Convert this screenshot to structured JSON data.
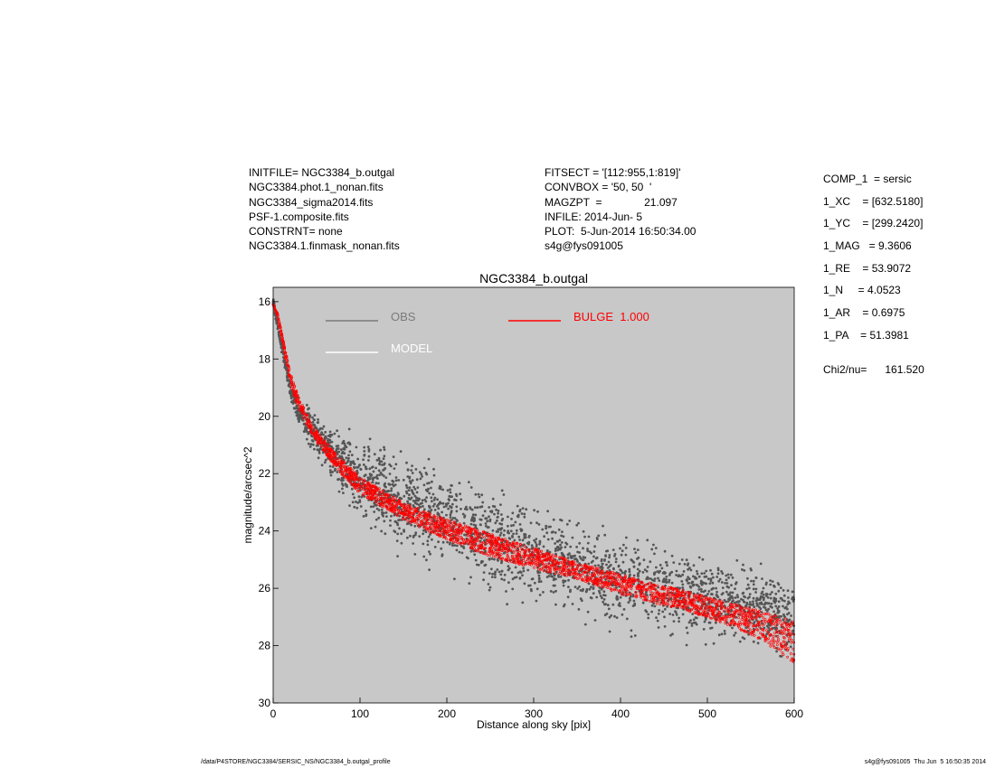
{
  "header_left": [
    "INITFILE= NGC3384_b.outgal",
    "NGC3384.phot.1_nonan.fits",
    "NGC3384_sigma2014.fits",
    "PSF-1.composite.fits",
    "CONSTRNT= none",
    "NGC3384.1.finmask_nonan.fits"
  ],
  "header_mid": [
    "FITSECT = '[112:955,1:819]'",
    "CONVBOX = '50, 50  '",
    "MAGZPT  =              21.097",
    "INFILE: 2014-Jun- 5",
    "PLOT:  5-Jun-2014 16:50:34.00",
    "s4g@fys091005"
  ],
  "params": {
    "comp": "COMP_1  = sersic",
    "xc": "1_XC    = [632.5180]",
    "yc": "1_YC    = [299.2420]",
    "mag": "1_MAG   = 9.3606",
    "re": "1_RE    = 53.9072",
    "n": "1_N     = 4.0523",
    "ar": "1_AR    = 0.6975",
    "pa": "1_PA    = 51.3981",
    "chi": "Chi2/nu=      161.520"
  },
  "footer": {
    "left": "/data/P4STORE/NGC3384/SERSIC_NS/NGC3384_b.outgal_profile",
    "right": "s4g@fys091005  Thu Jun  5 16:50:35 2014"
  },
  "colors": {
    "plot_bg": "#c8c8c8",
    "obs": "#555555",
    "model": "#ffffff",
    "bulge": "#ff0000",
    "obs_legend": "#7a7a7a"
  },
  "chart_data": {
    "type": "scatter",
    "title": "NGC3384_b.outgal",
    "xlabel": "Distance along sky [pix]",
    "ylabel": "magnitude/arcsec^2",
    "xlim": [
      0,
      600
    ],
    "ylim": [
      30,
      15.5
    ],
    "y_inverted": true,
    "xticks": [
      0,
      100,
      200,
      300,
      400,
      500,
      600
    ],
    "yticks": [
      16,
      18,
      20,
      22,
      24,
      26,
      28,
      30
    ],
    "grid": false,
    "legend": [
      {
        "name": "OBS",
        "color": "#7a7a7a",
        "position": "top-left"
      },
      {
        "name": "MODEL",
        "color": "#ffffff",
        "position": "top-left"
      },
      {
        "name": "BULGE  1.000",
        "color": "#ff0000",
        "position": "top-center"
      }
    ],
    "series": [
      {
        "name": "OBS",
        "color": "#555555",
        "x": [
          0,
          10,
          20,
          30,
          50,
          75,
          100,
          150,
          200,
          250,
          300,
          350,
          400,
          450,
          500,
          550,
          600
        ],
        "y_center": [
          16.0,
          17.6,
          19.1,
          19.9,
          20.7,
          21.4,
          22.2,
          23.0,
          23.7,
          24.2,
          24.8,
          25.3,
          25.7,
          26.1,
          26.4,
          26.7,
          27.0
        ],
        "y_spread": [
          0.2,
          0.3,
          0.5,
          0.8,
          1.2,
          1.6,
          2.0,
          2.4,
          2.6,
          2.6,
          2.6,
          2.4,
          2.3,
          2.2,
          2.2,
          2.2,
          2.2
        ]
      },
      {
        "name": "BULGE  1.000",
        "color": "#ff0000",
        "x": [
          0,
          5,
          10,
          20,
          30,
          50,
          75,
          100,
          150,
          200,
          250,
          300,
          350,
          400,
          450,
          500,
          550,
          600
        ],
        "y_upper": [
          16.1,
          16.4,
          17.1,
          18.5,
          19.4,
          20.5,
          21.4,
          22.1,
          23.0,
          23.6,
          24.1,
          24.6,
          25.1,
          25.5,
          25.9,
          26.3,
          26.7,
          27.1
        ],
        "y_lower": [
          16.1,
          16.5,
          17.3,
          18.9,
          19.8,
          20.9,
          21.9,
          22.7,
          23.6,
          24.3,
          24.9,
          25.3,
          25.7,
          26.2,
          26.6,
          27.0,
          27.6,
          28.6
        ]
      }
    ]
  }
}
